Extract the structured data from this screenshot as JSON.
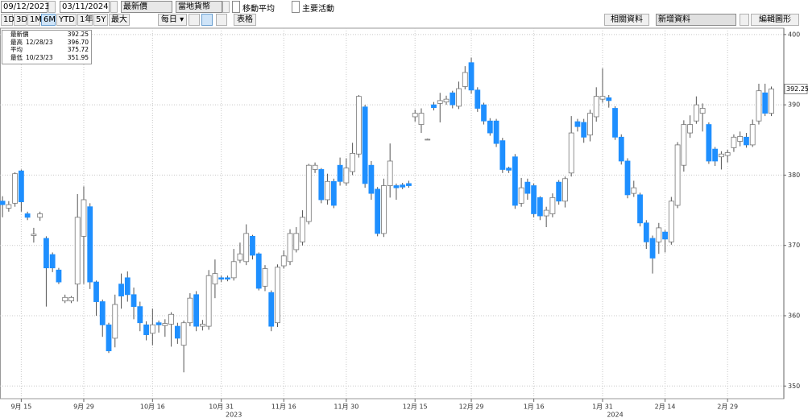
{
  "toolbar": {
    "start_date": "09/12/2023",
    "end_date": "03/11/2024",
    "price_field": "最新價",
    "currency": "當地貨幣",
    "checkboxes": [
      "移動平均",
      "主要活動"
    ],
    "ranges": [
      "1D",
      "3D",
      "1M",
      "6M",
      "YTD",
      "1年",
      "5Y",
      "最大"
    ],
    "active_range": 3,
    "interval": "每日",
    "table": "表格",
    "related": "相關資料",
    "add": "新增資料",
    "edit": "編輯圖形"
  },
  "stats": [
    {
      "label": "最新價",
      "value": "392.25"
    },
    {
      "label": "最高",
      "date": "12/28/23",
      "value": "396.70"
    },
    {
      "label": "平均",
      "value": "375.72"
    },
    {
      "label": "最低",
      "date": "10/23/23",
      "value": "351.95"
    }
  ],
  "chart_data": {
    "type": "candlestick",
    "up_color": "#ffffff",
    "down_color": "#1e8fff",
    "grid": true,
    "xlim": [
      -0.4,
      125
    ],
    "ylim": [
      348.2,
      400.9
    ],
    "yticks": [
      350,
      360,
      370,
      380,
      390,
      400
    ],
    "xticks": [
      {
        "value": 3,
        "label": "9月 15"
      },
      {
        "value": 13,
        "label": "9月 29"
      },
      {
        "value": 24,
        "label": "10月 16"
      },
      {
        "value": 35,
        "label": "10月 31"
      },
      {
        "value": 45,
        "label": "11月 16"
      },
      {
        "value": 55,
        "label": "11月 30"
      },
      {
        "value": 66,
        "label": "12月 15"
      },
      {
        "value": 75,
        "label": "12月 29"
      },
      {
        "value": 85,
        "label": "1月 16"
      },
      {
        "value": 96,
        "label": "1月 31"
      },
      {
        "value": 106,
        "label": "2月 14"
      },
      {
        "value": 116,
        "label": "2月 29"
      }
    ],
    "year_ticks": [
      {
        "value": 37,
        "label": "2023"
      },
      {
        "value": 98,
        "label": "2024"
      }
    ],
    "x": [
      0,
      1,
      2,
      3,
      4,
      5,
      6,
      7,
      8,
      9,
      10,
      11,
      12,
      13,
      14,
      15,
      16,
      17,
      18,
      19,
      20,
      21,
      22,
      23,
      24,
      25,
      26,
      27,
      28,
      29,
      30,
      31,
      32,
      33,
      34,
      35,
      36,
      37,
      38,
      39,
      40,
      41,
      42,
      43,
      44,
      45,
      46,
      47,
      48,
      49,
      50,
      51,
      52,
      53,
      54,
      55,
      56,
      57,
      58,
      59,
      60,
      61,
      62,
      63,
      64,
      65,
      66,
      67,
      68,
      69,
      70,
      71,
      72,
      73,
      74,
      75,
      76,
      77,
      78,
      79,
      80,
      81,
      82,
      83,
      84,
      85,
      86,
      87,
      88,
      89,
      90,
      91,
      92,
      93,
      94,
      95,
      96,
      97,
      98,
      99,
      100,
      101,
      102,
      103,
      104,
      105,
      106,
      107,
      108,
      109,
      110,
      111,
      112,
      113,
      114,
      115,
      116,
      117,
      118,
      119,
      120,
      121,
      122,
      123
    ],
    "open": [
      376.3,
      375.3,
      376,
      380.6,
      374.5,
      371.4,
      374,
      371,
      368.7,
      366.5,
      362.1,
      362.1,
      364.5,
      371.3,
      375.5,
      364.8,
      362,
      358.7,
      356.8,
      364.5,
      365.4,
      363,
      361.3,
      358.7,
      357.5,
      359,
      358.6,
      358.8,
      358.5,
      355.8,
      359,
      363,
      358.5,
      358.5,
      364.5,
      365.4,
      365.4,
      365.4,
      367.9,
      367.7,
      371.3,
      368.8,
      364.2,
      363.3,
      359,
      367.1,
      367.7,
      369.4,
      370.5,
      373.4,
      380.8,
      380.8,
      376.5,
      379.1,
      381.4,
      378.9,
      380.5,
      383,
      389.7,
      381.4,
      378,
      371.7,
      378.5,
      378.5,
      378.6,
      378.8,
      388.3,
      387.2,
      385.1,
      390,
      390.2,
      390.4,
      391.7,
      389.8,
      392.6,
      396,
      392.1,
      390,
      387.7,
      387.7,
      384.9,
      381,
      382.6,
      376,
      379,
      378.5,
      376.8,
      374.2,
      374.5,
      379,
      376.3,
      380.3,
      387.6,
      387.5,
      385.7,
      388.3,
      390.8,
      391,
      389.5,
      385.4,
      382,
      377.4,
      377.2,
      373.2,
      371,
      370.5,
      371.9,
      370.5,
      375.7,
      381.4,
      386,
      387.7,
      388.8,
      387.2,
      383.7,
      382.6,
      382.8,
      383.9,
      384.8,
      385.4,
      384.3,
      387.7,
      391.7,
      388.8
    ],
    "high": [
      377,
      376.3,
      380.4,
      380.8,
      374.8,
      372.5,
      374.8,
      371.3,
      369,
      366.8,
      363,
      362.8,
      377.3,
      378.4,
      376,
      365,
      362.3,
      359,
      363,
      366,
      366.3,
      364,
      362,
      359.2,
      361,
      359.3,
      359.5,
      360.5,
      359,
      359.3,
      363.2,
      363.5,
      359.4,
      366.5,
      368,
      365.7,
      365.7,
      369.5,
      370.4,
      373,
      371.5,
      369,
      367.2,
      363.6,
      367.3,
      369.3,
      372.3,
      372.6,
      375,
      381.6,
      381.8,
      381,
      380.2,
      379.5,
      382.5,
      382.4,
      384.6,
      391.4,
      390,
      382,
      378.3,
      379.5,
      384.5,
      378.8,
      378.9,
      379.2,
      389.3,
      389.5,
      385.2,
      390.4,
      391.7,
      391.3,
      392,
      393.3,
      395.5,
      396.7,
      392.5,
      390.3,
      388.1,
      388,
      385.3,
      381.2,
      383,
      379.6,
      379.5,
      378.8,
      377,
      375.5,
      377.4,
      379.3,
      379.8,
      388.4,
      388,
      388,
      389.3,
      392.5,
      395.2,
      391.4,
      389.8,
      385.8,
      382.4,
      379.2,
      377.5,
      373.6,
      371.4,
      373.2,
      372.2,
      376.9,
      384.7,
      387.8,
      388.5,
      391.2,
      390.2,
      387.5,
      384,
      383.4,
      383.6,
      385.8,
      386.2,
      386,
      387.9,
      393,
      393,
      392.6
    ],
    "low": [
      374,
      374.8,
      375.5,
      374.8,
      373.6,
      370.4,
      373.5,
      361.3,
      366.2,
      364.5,
      361.8,
      361.8,
      362,
      364.5,
      363.8,
      360,
      357,
      354.7,
      355.5,
      361,
      362,
      359.5,
      357.8,
      356.5,
      355.8,
      357.6,
      357,
      355.6,
      356,
      351.95,
      358.5,
      357.8,
      357.9,
      358,
      362.5,
      364.8,
      364.9,
      365,
      367.5,
      367.2,
      368,
      363.6,
      363.5,
      357.8,
      358.4,
      366.7,
      367.2,
      369,
      370,
      373,
      380.3,
      376,
      375.8,
      375.3,
      378.5,
      378.5,
      380,
      382.5,
      378.2,
      376.5,
      371.3,
      371.2,
      376.8,
      376.5,
      378,
      378.2,
      387.6,
      386,
      385,
      389.2,
      387.5,
      390,
      389.5,
      389.4,
      392.2,
      391.6,
      389,
      387.2,
      385.6,
      384,
      380.3,
      380.3,
      375.2,
      375.5,
      376.5,
      374,
      373.6,
      372.6,
      374,
      375.8,
      375.4,
      379.8,
      386.2,
      384.6,
      384.8,
      387.6,
      390.3,
      389.6,
      385,
      381.5,
      376.7,
      376.9,
      372.7,
      369.5,
      366,
      368.8,
      369,
      370.1,
      375.3,
      380.5,
      385.3,
      387.3,
      386.2,
      381.6,
      381.3,
      380.8,
      381.8,
      383.3,
      384.1,
      383.9,
      384,
      387.2,
      388.4,
      388.4
    ],
    "close": [
      375.8,
      375.8,
      380.2,
      376.2,
      374,
      371.6,
      374.5,
      366.8,
      366.8,
      364.8,
      362.6,
      362.6,
      374,
      376.5,
      364.8,
      362,
      358.7,
      355,
      361.6,
      362.8,
      363,
      361.3,
      359,
      357.3,
      358.7,
      358.7,
      358.9,
      360.2,
      356.8,
      359,
      362.5,
      358.5,
      358.8,
      365.7,
      366,
      365.2,
      365.2,
      367.7,
      368.8,
      371.7,
      368.6,
      363.9,
      366.7,
      358.5,
      366.9,
      368.5,
      371.7,
      371.7,
      374,
      381.4,
      381.4,
      376.5,
      379.1,
      375.7,
      379.1,
      381,
      383.1,
      391.2,
      378.8,
      377.4,
      371.7,
      378.5,
      382,
      378.2,
      378.3,
      378.5,
      388.8,
      388.8,
      385.1,
      389.6,
      390.6,
      390.8,
      390,
      392.3,
      394.6,
      392.1,
      389.5,
      387.7,
      386,
      384.5,
      380.8,
      380.7,
      375.7,
      378.2,
      377.4,
      374.5,
      374.2,
      375,
      376.8,
      376.3,
      379.5,
      386,
      386.9,
      385.4,
      388.8,
      391.2,
      391.2,
      390.6,
      385.4,
      382,
      377.2,
      378.2,
      373.2,
      370.5,
      368.2,
      372.5,
      370.9,
      376.3,
      384.3,
      387.2,
      387.2,
      390,
      389.5,
      382,
      382,
      383,
      383.2,
      385.4,
      385.5,
      384.3,
      387.2,
      392,
      388.8,
      392.25
    ]
  }
}
